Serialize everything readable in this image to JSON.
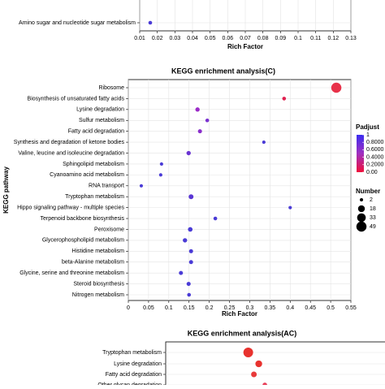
{
  "chart_data": [
    {
      "type": "scatter",
      "x_label": "Rich Factor",
      "categories": [
        "Amino sugar and nucleotide sugar metabolism"
      ],
      "x": [
        0.016
      ],
      "sizes": [
        3
      ],
      "colors": [
        "#4a3bd6"
      ],
      "xlim": [
        0.01,
        0.13
      ],
      "xticks": [
        0.01,
        0.02,
        0.03,
        0.04,
        0.05,
        0.06,
        0.07,
        0.08,
        0.09,
        0.1,
        0.11,
        0.12,
        0.13
      ]
    },
    {
      "type": "scatter",
      "title": "KEGG enrichment analysis(C)",
      "x_label": "Rich Factor",
      "y_label": "KEGG pathway",
      "categories": [
        "Ribosome",
        "Biosynthesis of unsaturated fatty acids",
        "Lysine degradation",
        "Sulfur metabolism",
        "Fatty acid degradation",
        "Synthesis and degradation of ketone bodies",
        "Valine, leucine and isoleucine degradation",
        "Sphingolipid metabolism",
        "Cyanoamino acid metabolism",
        "RNA transport",
        "Tryptophan metabolism",
        "Hippo signaling pathway - multiple species",
        "Terpenoid backbone biosynthesis",
        "Peroxisome",
        "Glycerophospholipid metabolism",
        "Histidine metabolism",
        "beta-Alanine metabolism",
        "Glycine, serine and threonine metabolism",
        "Steroid biosynthesis",
        "Nitrogen metabolism"
      ],
      "x": [
        0.514,
        0.385,
        0.171,
        0.195,
        0.177,
        0.335,
        0.149,
        0.082,
        0.08,
        0.032,
        0.155,
        0.4,
        0.215,
        0.153,
        0.14,
        0.155,
        0.155,
        0.13,
        0.149,
        0.15
      ],
      "sizes": [
        49,
        3,
        5,
        3,
        4,
        2,
        5,
        2,
        2,
        2,
        7,
        2,
        3,
        6,
        5,
        4,
        4,
        4,
        4,
        3
      ],
      "colors": [
        "#e8324a",
        "#e02050",
        "#9b2bc8",
        "#7a30d0",
        "#8a2ecc",
        "#4a3bd6",
        "#6a33d2",
        "#4a3bd6",
        "#4a3bd6",
        "#4a3bd6",
        "#5a36d4",
        "#4a3bd6",
        "#4a3bd6",
        "#4a3bd6",
        "#4a3bd6",
        "#4a3bd6",
        "#4a3bd6",
        "#4a3bd6",
        "#4a3bd6",
        "#4a3bd6"
      ],
      "xlim": [
        0,
        0.55
      ],
      "xticks": [
        0,
        0.05,
        0.1,
        0.15,
        0.2,
        0.25,
        0.3,
        0.35,
        0.4,
        0.45,
        0.5,
        0.55
      ],
      "colorbar": {
        "label": "Padjust",
        "lim": [
          0,
          1
        ],
        "ticks": [
          1,
          {
            "value": 0.8,
            "label": "0.8000"
          },
          {
            "value": 0.6,
            "label": "0.6000"
          },
          {
            "value": 0.4,
            "label": "0.4000"
          },
          {
            "value": 0.2,
            "label": "0.2000"
          },
          {
            "value": 0,
            "label": "0.00"
          }
        ]
      },
      "size_legend": {
        "label": "Number",
        "values": [
          2,
          18,
          33,
          49
        ]
      }
    },
    {
      "type": "scatter",
      "title": "KEGG enrichment analysis(AC)",
      "categories": [
        "Tryptophan metabolism",
        "Lysine degradation",
        "Fatty acid degradation",
        "Other glycan degradation"
      ],
      "x": [
        0.114,
        0.14,
        0.128,
        0.155
      ],
      "sizes": [
        44,
        18,
        11,
        6
      ],
      "colors": [
        "#e8322e",
        "#e8322e",
        "#e83a3a",
        "#e8405a"
      ],
      "xlim": [
        -0.09,
        0.46
      ]
    }
  ]
}
